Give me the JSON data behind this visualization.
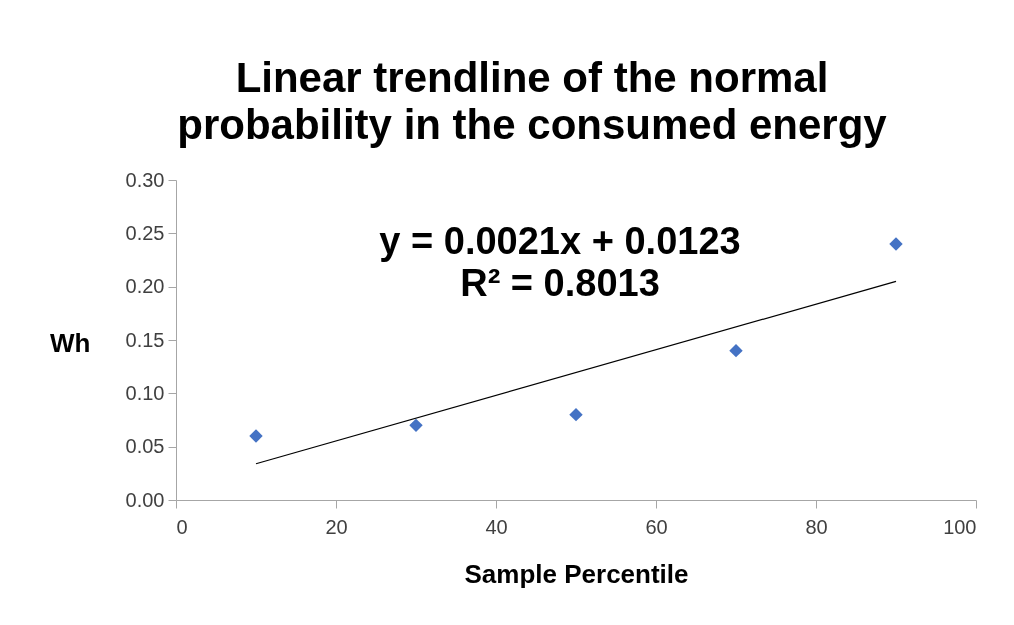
{
  "chart_data": {
    "type": "scatter",
    "title": "Linear trendline of the normal probability in the consumed energy",
    "xlabel": "Sample Percentile",
    "ylabel": "Wh",
    "annotations": [
      "y = 0.0021x + 0.0123",
      "R² = 0.8013"
    ],
    "series": [
      {
        "color": "#4472c4",
        "marker": "diamond",
        "x": [
          10,
          30,
          50,
          70,
          90
        ],
        "values": [
          0.06,
          0.07,
          0.08,
          0.14,
          0.24
        ]
      },
      {
        "type": "line",
        "color": "#000000",
        "marker": "none",
        "x": [
          10,
          90
        ],
        "values": [
          0.034,
          0.205
        ]
      }
    ],
    "xlim": [
      0,
      100
    ],
    "xticks": [
      0,
      20,
      40,
      60,
      80,
      100
    ],
    "ylim": [
      0,
      0.3
    ],
    "yticks": [
      {
        "value": 0,
        "label": "0.00"
      },
      {
        "value": 0.05,
        "label": "0.05"
      },
      {
        "value": 0.1,
        "label": "0.10"
      },
      {
        "value": 0.15,
        "label": "0.15"
      },
      {
        "value": 0.2,
        "label": "0.20"
      },
      {
        "value": 0.25,
        "label": "0.25"
      },
      {
        "value": 0.3,
        "label": "0.30"
      }
    ]
  }
}
